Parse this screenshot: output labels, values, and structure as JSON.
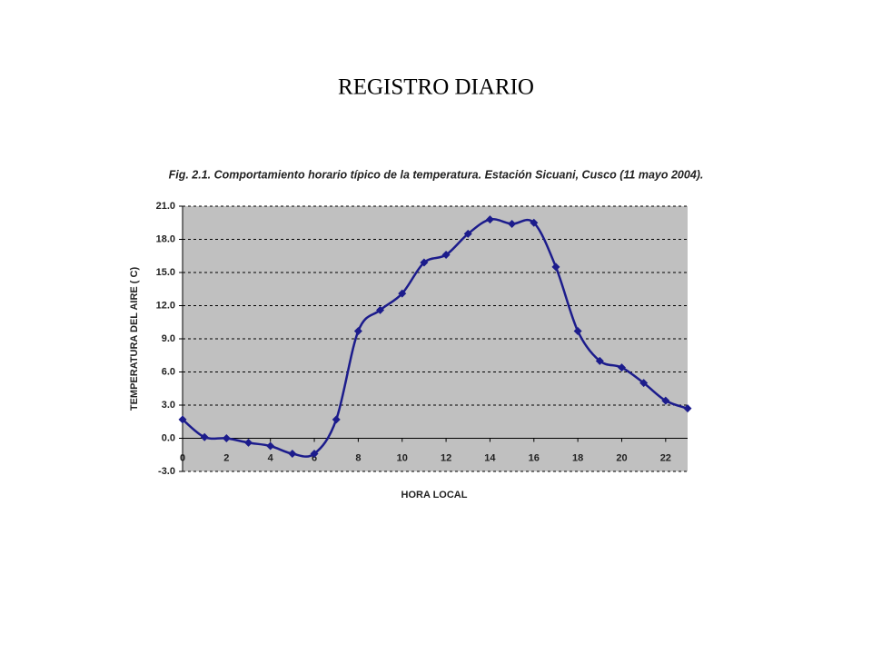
{
  "page_title": "REGISTRO DIARIO",
  "chart_data": {
    "type": "line",
    "title": "Fig. 2.1. Comportamiento horario típico de la temperatura. Estación Sicuani, Cusco (11 mayo 2004).",
    "x_label": "HORA LOCAL",
    "y_label": "TEMPERATURA DEL AIRE ( C)",
    "x": [
      0,
      1,
      2,
      3,
      4,
      5,
      6,
      7,
      8,
      9,
      10,
      11,
      12,
      13,
      14,
      15,
      16,
      17,
      18,
      19,
      20,
      21,
      22,
      23
    ],
    "series": [
      {
        "name": "Temperatura",
        "color": "#1c1c8c",
        "values": [
          1.7,
          0.1,
          0.0,
          -0.4,
          -0.7,
          -1.4,
          -1.4,
          1.7,
          9.7,
          11.6,
          13.1,
          15.9,
          16.6,
          18.5,
          19.8,
          19.4,
          19.5,
          15.5,
          9.7,
          7.0,
          6.4,
          5.0,
          3.4,
          2.7
        ]
      }
    ],
    "xlim": [
      0,
      23
    ],
    "xticks": [
      0,
      2,
      4,
      6,
      8,
      10,
      12,
      14,
      16,
      18,
      20,
      22
    ],
    "ylim": [
      -3,
      21
    ],
    "yticks": [
      {
        "value": -3,
        "label": "-3.0"
      },
      {
        "value": 0,
        "label": "0.0"
      },
      {
        "value": 3,
        "label": "3.0"
      },
      {
        "value": 6,
        "label": "6.0"
      },
      {
        "value": 9,
        "label": "9.0"
      },
      {
        "value": 12,
        "label": "12.0"
      },
      {
        "value": 15,
        "label": "15.0"
      },
      {
        "value": 18,
        "label": "18.0"
      },
      {
        "value": 21,
        "label": "21.0"
      }
    ],
    "grid": true,
    "plot_background": "#c0c0c0"
  }
}
